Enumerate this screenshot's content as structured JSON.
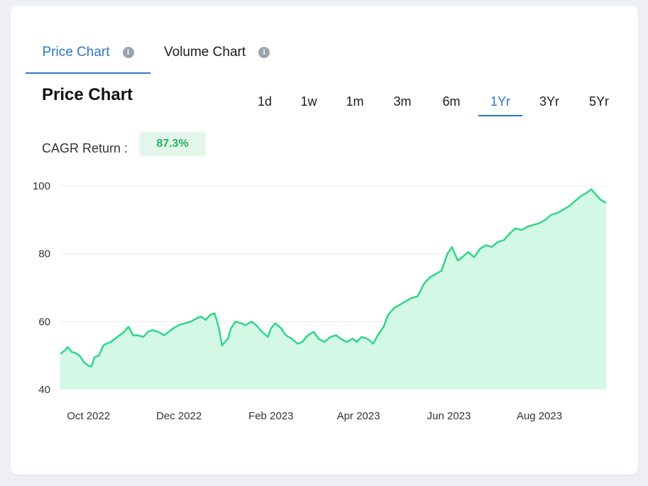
{
  "tabs": {
    "price_label": "Price Chart",
    "volume_label": "Volume Chart",
    "info_glyph": "i"
  },
  "title": "Price Chart",
  "ranges": [
    "1d",
    "1w",
    "1m",
    "3m",
    "6m",
    "1Yr",
    "3Yr",
    "5Yr"
  ],
  "active_range": "1Yr",
  "cagr": {
    "label": "CAGR Return :",
    "value": "87.3%"
  },
  "colors": {
    "accent": "#2b78c4",
    "line": "#2fd68a",
    "fill": "#d3f8e6",
    "positive": "#27b45f"
  },
  "chart_data": {
    "type": "area",
    "ylim": [
      40,
      100
    ],
    "yticks": [
      40,
      60,
      80,
      100
    ],
    "xlim": [
      "2022-09-12",
      "2023-09-15"
    ],
    "xticks": [
      {
        "date": "2022-10-01",
        "label": "Oct 2022"
      },
      {
        "date": "2022-12-01",
        "label": "Dec 2022"
      },
      {
        "date": "2023-02-01",
        "label": "Feb 2023"
      },
      {
        "date": "2023-04-01",
        "label": "Apr 2023"
      },
      {
        "date": "2023-06-01",
        "label": "Jun 2023"
      },
      {
        "date": "2023-08-01",
        "label": "Aug 2023"
      }
    ],
    "grid": true,
    "series": [
      {
        "x": [
          "2022-09-12",
          "2022-09-15",
          "2022-09-17",
          "2022-09-20",
          "2022-09-22",
          "2022-09-25",
          "2022-09-28",
          "2022-10-01",
          "2022-10-03",
          "2022-10-05",
          "2022-10-08",
          "2022-10-11",
          "2022-10-13",
          "2022-10-16",
          "2022-10-19",
          "2022-10-22",
          "2022-10-25",
          "2022-10-28",
          "2022-10-31",
          "2022-11-03",
          "2022-11-07",
          "2022-11-10",
          "2022-11-13",
          "2022-11-17",
          "2022-11-21",
          "2022-11-24",
          "2022-11-27",
          "2022-12-01",
          "2022-12-05",
          "2022-12-09",
          "2022-12-13",
          "2022-12-16",
          "2022-12-19",
          "2022-12-22",
          "2022-12-25",
          "2022-12-28",
          "2022-12-30",
          "2023-01-03",
          "2023-01-05",
          "2023-01-08",
          "2023-01-12",
          "2023-01-15",
          "2023-01-19",
          "2023-01-22",
          "2023-01-26",
          "2023-01-30",
          "2023-02-01",
          "2023-02-04",
          "2023-02-08",
          "2023-02-11",
          "2023-02-15",
          "2023-02-19",
          "2023-02-22",
          "2023-02-26",
          "2023-03-02",
          "2023-03-05",
          "2023-03-09",
          "2023-03-13",
          "2023-03-17",
          "2023-03-20",
          "2023-03-24",
          "2023-03-28",
          "2023-03-31",
          "2023-04-03",
          "2023-04-07",
          "2023-04-11",
          "2023-04-14",
          "2023-04-18",
          "2023-04-21",
          "2023-04-25",
          "2023-04-29",
          "2023-05-03",
          "2023-05-07",
          "2023-05-11",
          "2023-05-15",
          "2023-05-19",
          "2023-05-23",
          "2023-05-27",
          "2023-05-31",
          "2023-06-03",
          "2023-06-07",
          "2023-06-10",
          "2023-06-14",
          "2023-06-18",
          "2023-06-22",
          "2023-06-26",
          "2023-06-30",
          "2023-07-04",
          "2023-07-08",
          "2023-07-12",
          "2023-07-16",
          "2023-07-20",
          "2023-07-24",
          "2023-07-28",
          "2023-08-01",
          "2023-08-05",
          "2023-08-09",
          "2023-08-13",
          "2023-08-17",
          "2023-08-21",
          "2023-08-25",
          "2023-08-29",
          "2023-09-02",
          "2023-09-05",
          "2023-09-08",
          "2023-09-11",
          "2023-09-13",
          "2023-09-15"
        ],
        "y": [
          50.5,
          51.5,
          52.5,
          51,
          50.8,
          50,
          48,
          47,
          46.8,
          49.5,
          50,
          53,
          53.5,
          54,
          55,
          56,
          57,
          58.5,
          56,
          56,
          55.5,
          57,
          57.5,
          57,
          56,
          57,
          58,
          59,
          59.5,
          60,
          61,
          61.5,
          60.5,
          62,
          62.5,
          58,
          53,
          55,
          58,
          60,
          59.5,
          59,
          60,
          59,
          57,
          55.5,
          58,
          59.5,
          58,
          56,
          55,
          53.5,
          54,
          56,
          57,
          55,
          54,
          55.5,
          56,
          55,
          54,
          55,
          54,
          55.5,
          55,
          53.5,
          56,
          58.5,
          62,
          64,
          65,
          66,
          67,
          67.5,
          71,
          73,
          74,
          75,
          80,
          82,
          78,
          79,
          80.5,
          79,
          81.5,
          82.5,
          82,
          83.5,
          84,
          86,
          87.5,
          87,
          88,
          88.5,
          89,
          90,
          91.5,
          92,
          93,
          94,
          95.5,
          97,
          98,
          99,
          97.5,
          96,
          95.5,
          95
        ]
      }
    ]
  }
}
